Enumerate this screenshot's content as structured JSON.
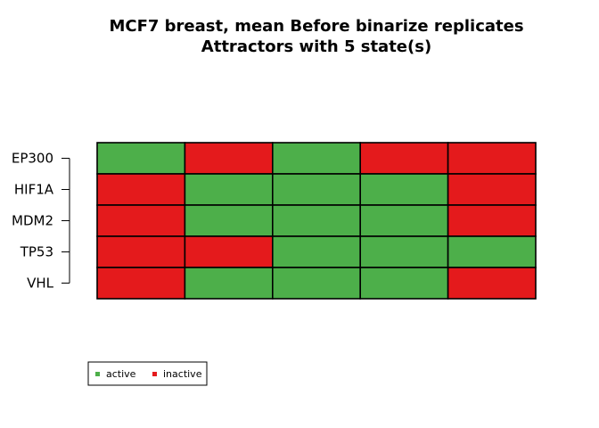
{
  "chart_data": {
    "type": "heatmap",
    "title": "MCF7 breast, mean Before binarize replicates",
    "subtitle": "Attractors with 5 state(s)",
    "rows": [
      "EP300",
      "HIF1A",
      "MDM2",
      "TP53",
      "VHL"
    ],
    "states": 5,
    "values": [
      [
        1,
        0,
        1,
        0,
        0
      ],
      [
        0,
        1,
        1,
        1,
        0
      ],
      [
        0,
        1,
        1,
        1,
        0
      ],
      [
        0,
        0,
        1,
        1,
        1
      ],
      [
        0,
        1,
        1,
        1,
        0
      ]
    ],
    "legend": [
      {
        "label": "active",
        "value": 1,
        "color": "#4daf4a"
      },
      {
        "label": "inactive",
        "value": 0,
        "color": "#e41a1c"
      }
    ],
    "legend_position": "bottom-left"
  }
}
